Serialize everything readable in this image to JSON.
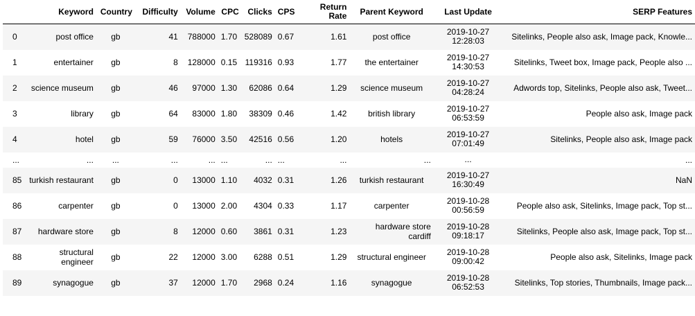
{
  "columns": [
    "",
    "Keyword",
    "Country",
    "Difficulty",
    "Volume",
    "CPC",
    "Clicks",
    "CPS",
    "Return Rate",
    "Parent Keyword",
    "Last Update",
    "SERP Features"
  ],
  "rows": [
    {
      "idx": "0",
      "keyword": "post office",
      "country": "gb",
      "difficulty": "41",
      "volume": "788000",
      "cpc": "1.70",
      "clicks": "528089",
      "cps": "0.67",
      "rate": "1.61",
      "parent": "post office",
      "update": "2019-10-27 12:28:03",
      "serp": "Sitelinks, People also ask, Image pack, Knowle..."
    },
    {
      "idx": "1",
      "keyword": "entertainer",
      "country": "gb",
      "difficulty": "8",
      "volume": "128000",
      "cpc": "0.15",
      "clicks": "119316",
      "cps": "0.93",
      "rate": "1.77",
      "parent": "the entertainer",
      "update": "2019-10-27 14:30:53",
      "serp": "Sitelinks, Tweet box, Image pack, People also ..."
    },
    {
      "idx": "2",
      "keyword": "science museum",
      "country": "gb",
      "difficulty": "46",
      "volume": "97000",
      "cpc": "1.30",
      "clicks": "62086",
      "cps": "0.64",
      "rate": "1.29",
      "parent": "science museum",
      "update": "2019-10-27 04:28:24",
      "serp": "Adwords top, Sitelinks, People also ask, Tweet..."
    },
    {
      "idx": "3",
      "keyword": "library",
      "country": "gb",
      "difficulty": "64",
      "volume": "83000",
      "cpc": "1.80",
      "clicks": "38309",
      "cps": "0.46",
      "rate": "1.42",
      "parent": "british library",
      "update": "2019-10-27 06:53:59",
      "serp": "People also ask, Image pack"
    },
    {
      "idx": "4",
      "keyword": "hotel",
      "country": "gb",
      "difficulty": "59",
      "volume": "76000",
      "cpc": "3.50",
      "clicks": "42516",
      "cps": "0.56",
      "rate": "1.20",
      "parent": "hotels",
      "update": "2019-10-27 07:01:49",
      "serp": "Sitelinks, People also ask, Image pack"
    },
    {
      "idx": "...",
      "keyword": "...",
      "country": "...",
      "difficulty": "...",
      "volume": "...",
      "cpc": "...",
      "clicks": "...",
      "cps": "...",
      "rate": "...",
      "parent": "...",
      "update": "...",
      "serp": "...",
      "ellipsis": true
    },
    {
      "idx": "85",
      "keyword": "turkish restaurant",
      "country": "gb",
      "difficulty": "0",
      "volume": "13000",
      "cpc": "1.10",
      "clicks": "4032",
      "cps": "0.31",
      "rate": "1.26",
      "parent": "turkish restaurant",
      "update": "2019-10-27 16:30:49",
      "serp": "NaN"
    },
    {
      "idx": "86",
      "keyword": "carpenter",
      "country": "gb",
      "difficulty": "0",
      "volume": "13000",
      "cpc": "2.00",
      "clicks": "4304",
      "cps": "0.33",
      "rate": "1.17",
      "parent": "carpenter",
      "update": "2019-10-28 00:56:59",
      "serp": "People also ask, Sitelinks, Image pack, Top st..."
    },
    {
      "idx": "87",
      "keyword": "hardware store",
      "country": "gb",
      "difficulty": "8",
      "volume": "12000",
      "cpc": "0.60",
      "clicks": "3861",
      "cps": "0.31",
      "rate": "1.23",
      "parent": "hardware store cardiff",
      "update": "2019-10-28 09:18:17",
      "serp": "Sitelinks, People also ask, Image pack, Top st..."
    },
    {
      "idx": "88",
      "keyword": "structural engineer",
      "country": "gb",
      "difficulty": "22",
      "volume": "12000",
      "cpc": "3.00",
      "clicks": "6288",
      "cps": "0.51",
      "rate": "1.29",
      "parent": "structural engineer",
      "update": "2019-10-28 09:00:42",
      "serp": "People also ask, Sitelinks, Image pack"
    },
    {
      "idx": "89",
      "keyword": "synagogue",
      "country": "gb",
      "difficulty": "37",
      "volume": "12000",
      "cpc": "1.70",
      "clicks": "2968",
      "cps": "0.24",
      "rate": "1.16",
      "parent": "synagogue",
      "update": "2019-10-28 06:52:53",
      "serp": "Sitelinks, Top stories, Thumbnails, Image pack..."
    }
  ]
}
